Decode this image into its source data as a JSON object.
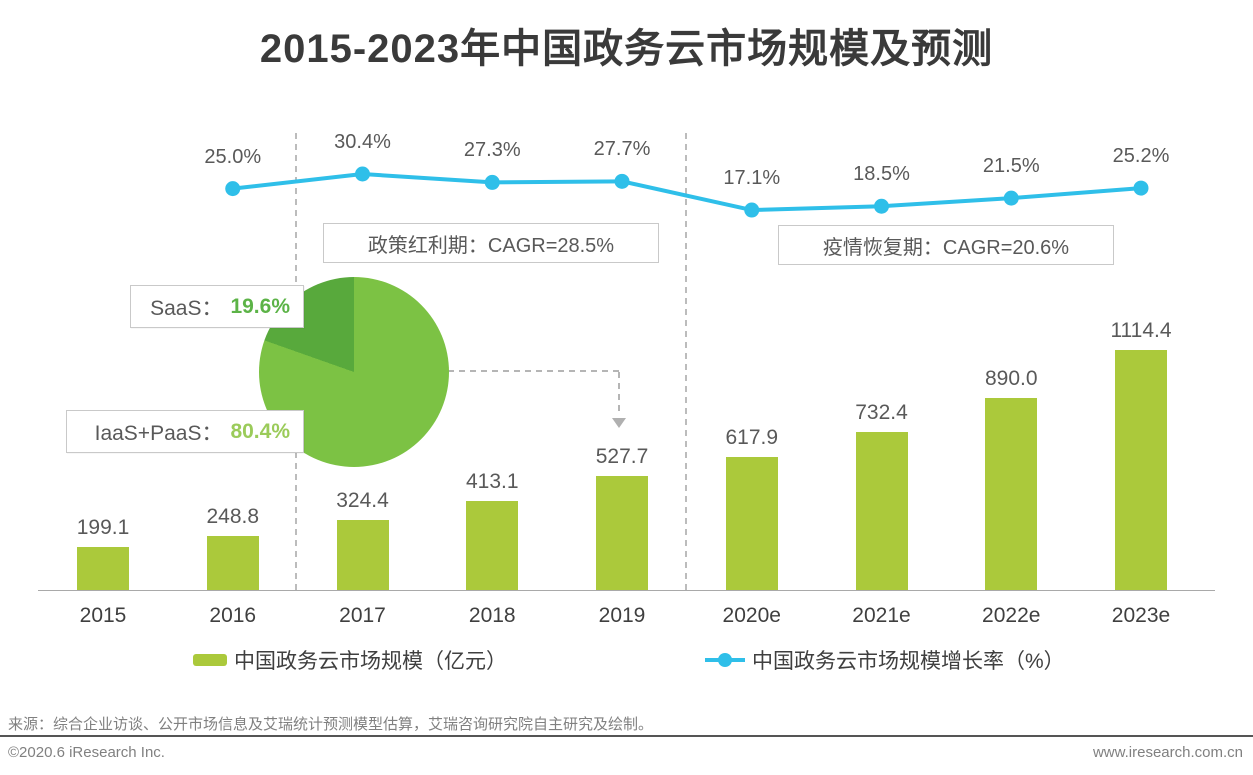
{
  "title": "2015-2023年中国政务云市场规模及预测",
  "chart_data": {
    "type": "combo",
    "title": "2015-2023年中国政务云市场规模及预测",
    "categories": [
      "2015",
      "2016",
      "2017",
      "2018",
      "2019",
      "2020e",
      "2021e",
      "2022e",
      "2023e"
    ],
    "series": [
      {
        "name": "中国政务云市场规模（亿元）",
        "type": "bar",
        "color": "#abc93b",
        "values": [
          199.1,
          248.8,
          324.4,
          413.1,
          527.7,
          617.9,
          732.4,
          890.0,
          1114.4
        ]
      },
      {
        "name": "中国政务云市场规模增长率（%）",
        "type": "line",
        "color": "#2fbfe9",
        "values": [
          null,
          25.0,
          30.4,
          27.3,
          27.7,
          17.1,
          18.5,
          21.5,
          25.2
        ]
      }
    ],
    "ylim": [
      0,
      1150
    ],
    "grid": false,
    "legend_position": "bottom",
    "period_annotations": [
      {
        "label": "政策红利期：CAGR=28.5%",
        "span": [
          "2017",
          "2019"
        ]
      },
      {
        "label": "疫情恢复期：CAGR=20.6%",
        "span": [
          "2020e",
          "2023e"
        ]
      }
    ],
    "pie": {
      "arrow_target_category": "2019",
      "slices": [
        {
          "label": "SaaS",
          "label_text": "SaaS：",
          "value": 19.6,
          "display": "19.6%",
          "color": "#58a93c",
          "text_color": "#5cb347"
        },
        {
          "label": "IaaS+PaaS",
          "label_text": "IaaS+PaaS：",
          "value": 80.4,
          "display": "80.4%",
          "color": "#7cc244",
          "text_color": "#9bcb5a"
        }
      ]
    }
  },
  "footer": {
    "source": "来源：综合企业访谈、公开市场信息及艾瑞统计预测模型估算，艾瑞咨询研究院自主研究及绘制。",
    "copyright": "©2020.6 iResearch Inc.",
    "website": "www.iresearch.com.cn"
  }
}
